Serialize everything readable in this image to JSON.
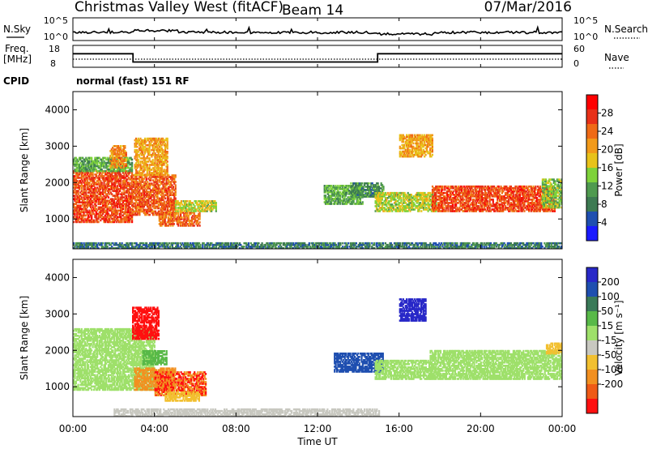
{
  "header": {
    "station": "Christmas Valley West (fitACF)",
    "beam": "Beam 14",
    "date": "07/Mar/2016"
  },
  "strip": {
    "nsky_label": "N.Sky",
    "nsky_ticks": [
      "10^5",
      "10^0"
    ],
    "nsearch_label": "N.Search",
    "nsearch_ticks": [
      "10^5",
      "10^0"
    ],
    "freq_label": "Freq.",
    "freq_unit": "[MHz]",
    "freq_ticks": [
      "18",
      "8"
    ],
    "nave_label": "Nave",
    "nave_ticks": [
      "60",
      "0"
    ],
    "cpid_label": "CPID",
    "cpid_value": "normal (fast) 151 RF"
  },
  "x_axis": {
    "label": "Time UT",
    "ticks": [
      "00:00",
      "04:00",
      "08:00",
      "12:00",
      "16:00",
      "20:00",
      "00:00"
    ],
    "hours": [
      0,
      4,
      8,
      12,
      16,
      20,
      24
    ]
  },
  "colors": {
    "power": [
      "#1a1aff",
      "#1f4fb0",
      "#3d7a52",
      "#4f9a4f",
      "#7ed23a",
      "#e8c21a",
      "#f29a1a",
      "#ef6a16",
      "#e83018",
      "#ff0000"
    ],
    "velocity": [
      "#2828c8",
      "#1f4fb0",
      "#3a7a58",
      "#58b948",
      "#9ee06a",
      "#c8c8c0",
      "#f2c030",
      "#f29020",
      "#ef5a16",
      "#ff1010"
    ]
  },
  "chart_data": [
    {
      "type": "heatmap",
      "name": "power",
      "xlabel": "Time UT",
      "ylabel": "Slant Range [km]",
      "xlim": [
        0,
        24
      ],
      "ylim": [
        180,
        4500
      ],
      "yticks": [
        1000,
        2000,
        3000,
        4000
      ],
      "colorbar": {
        "label": "Power [dB]",
        "ticks": [
          4,
          8,
          12,
          16,
          20,
          24,
          28
        ],
        "range": [
          0,
          32
        ]
      },
      "regions": [
        {
          "t0": 0.0,
          "t1": 2.9,
          "r0": 900,
          "r1": 2300,
          "value": 26
        },
        {
          "t0": 0.0,
          "t1": 2.9,
          "r0": 2300,
          "r1": 2700,
          "value": 12
        },
        {
          "t0": 1.8,
          "t1": 2.6,
          "r0": 2400,
          "r1": 3000,
          "value": 22
        },
        {
          "t0": 2.9,
          "t1": 5.0,
          "r0": 1100,
          "r1": 2200,
          "value": 25
        },
        {
          "t0": 3.0,
          "t1": 4.6,
          "r0": 2200,
          "r1": 3200,
          "value": 20
        },
        {
          "t0": 4.2,
          "t1": 6.2,
          "r0": 800,
          "r1": 1200,
          "value": 24
        },
        {
          "t0": 5.0,
          "t1": 7.0,
          "r0": 1200,
          "r1": 1500,
          "value": 16
        },
        {
          "t0": 12.3,
          "t1": 14.2,
          "r0": 1400,
          "r1": 1900,
          "value": 12
        },
        {
          "t0": 13.6,
          "t1": 15.2,
          "r0": 1600,
          "r1": 2000,
          "value": 10
        },
        {
          "t0": 14.8,
          "t1": 17.8,
          "r0": 1200,
          "r1": 1700,
          "value": 16
        },
        {
          "t0": 16.0,
          "t1": 17.6,
          "r0": 2700,
          "r1": 3300,
          "value": 20
        },
        {
          "t0": 17.6,
          "t1": 23.6,
          "r0": 1200,
          "r1": 1900,
          "value": 26
        },
        {
          "t0": 23.0,
          "t1": 24.0,
          "r0": 1300,
          "r1": 2100,
          "value": 14
        },
        {
          "t0": 0.0,
          "t1": 24.0,
          "r0": 180,
          "r1": 330,
          "value": 8
        }
      ]
    },
    {
      "type": "heatmap",
      "name": "velocity",
      "xlabel": "Time UT",
      "ylabel": "Slant Range [km]",
      "xlim": [
        0,
        24
      ],
      "ylim": [
        180,
        4500
      ],
      "yticks": [
        1000,
        2000,
        3000,
        4000
      ],
      "colorbar": {
        "label": "Velocity [m s⁻¹]",
        "ticks": [
          "200",
          "100",
          "50",
          "15",
          "-15",
          "-50",
          "-100",
          "-200"
        ]
      },
      "regions": [
        {
          "t0": 0.0,
          "t1": 4.0,
          "r0": 900,
          "r1": 2600,
          "value": 0
        },
        {
          "t0": 2.9,
          "t1": 4.2,
          "r0": 2300,
          "r1": 3200,
          "value": -220
        },
        {
          "t0": 3.4,
          "t1": 4.6,
          "r0": 1600,
          "r1": 2000,
          "value": 40
        },
        {
          "t0": 3.0,
          "t1": 5.0,
          "r0": 900,
          "r1": 1500,
          "value": -120
        },
        {
          "t0": 4.0,
          "t1": 6.5,
          "r0": 750,
          "r1": 1400,
          "value": -200
        },
        {
          "t0": 4.5,
          "t1": 6.2,
          "r0": 600,
          "r1": 850,
          "value": -90
        },
        {
          "t0": 12.8,
          "t1": 15.2,
          "r0": 1400,
          "r1": 1900,
          "value": 120
        },
        {
          "t0": 14.8,
          "t1": 17.5,
          "r0": 1200,
          "r1": 1700,
          "value": 0
        },
        {
          "t0": 16.0,
          "t1": 17.3,
          "r0": 2800,
          "r1": 3400,
          "value": 220
        },
        {
          "t0": 17.5,
          "t1": 24.0,
          "r0": 1200,
          "r1": 2000,
          "value": 0
        },
        {
          "t0": 23.2,
          "t1": 24.0,
          "r0": 1900,
          "r1": 2200,
          "value": -60
        },
        {
          "t0": 2.0,
          "t1": 15.0,
          "r0": 180,
          "r1": 380,
          "value": -40
        }
      ]
    },
    {
      "type": "line",
      "name": "frequency",
      "ylim": [
        8,
        18
      ],
      "x": [
        0,
        2.95,
        2.95,
        14.95,
        14.95,
        24
      ],
      "y": [
        14.2,
        14.2,
        10.4,
        10.4,
        14.2,
        14.2
      ]
    }
  ]
}
